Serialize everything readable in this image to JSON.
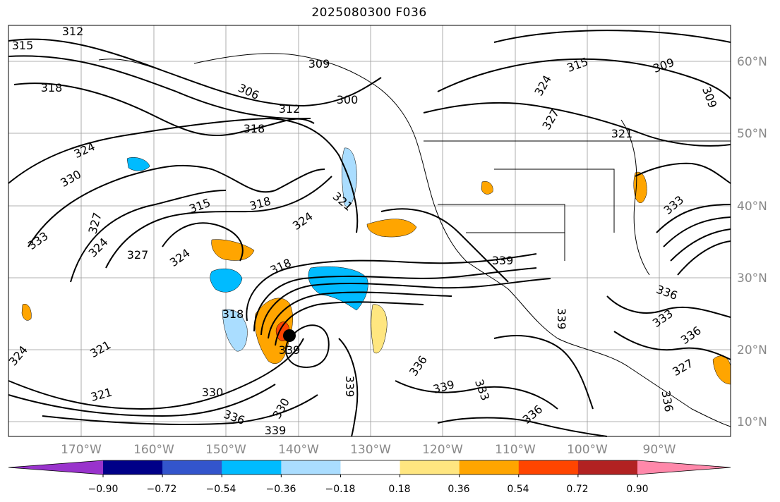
{
  "title": "2025080300 F036",
  "map": {
    "lon_labels": [
      "170°W",
      "160°W",
      "150°W",
      "140°W",
      "130°W",
      "120°W",
      "110°W",
      "100°W",
      "90°W"
    ],
    "lat_labels": [
      "60°N",
      "50°N",
      "40°N",
      "30°N",
      "20°N",
      "10°N"
    ],
    "contour_labels": [
      "312",
      "315",
      "318",
      "306",
      "309",
      "300",
      "312",
      "318",
      "324",
      "330",
      "315",
      "318",
      "321",
      "324",
      "327",
      "324",
      "327",
      "333",
      "324",
      "318",
      "318",
      "321",
      "330",
      "321",
      "324",
      "336",
      "339",
      "339",
      "336",
      "339",
      "333",
      "330",
      "336",
      "339",
      "315",
      "309",
      "324",
      "327",
      "321",
      "309",
      "336",
      "333",
      "336",
      "327",
      "336",
      "339",
      "333"
    ],
    "storm_center_label": "339"
  },
  "colorbar": {
    "ticks": [
      "−0.90",
      "−0.72",
      "−0.54",
      "−0.36",
      "−0.18",
      "0.18",
      "0.36",
      "0.54",
      "0.72",
      "0.90"
    ],
    "colors": [
      "#9933cc",
      "#000088",
      "#3355cc",
      "#00bbff",
      "#aaddff",
      "#ffffff",
      "#ffe680",
      "#ffa500",
      "#ff4500",
      "#b22222",
      "#ff88aa"
    ]
  }
}
